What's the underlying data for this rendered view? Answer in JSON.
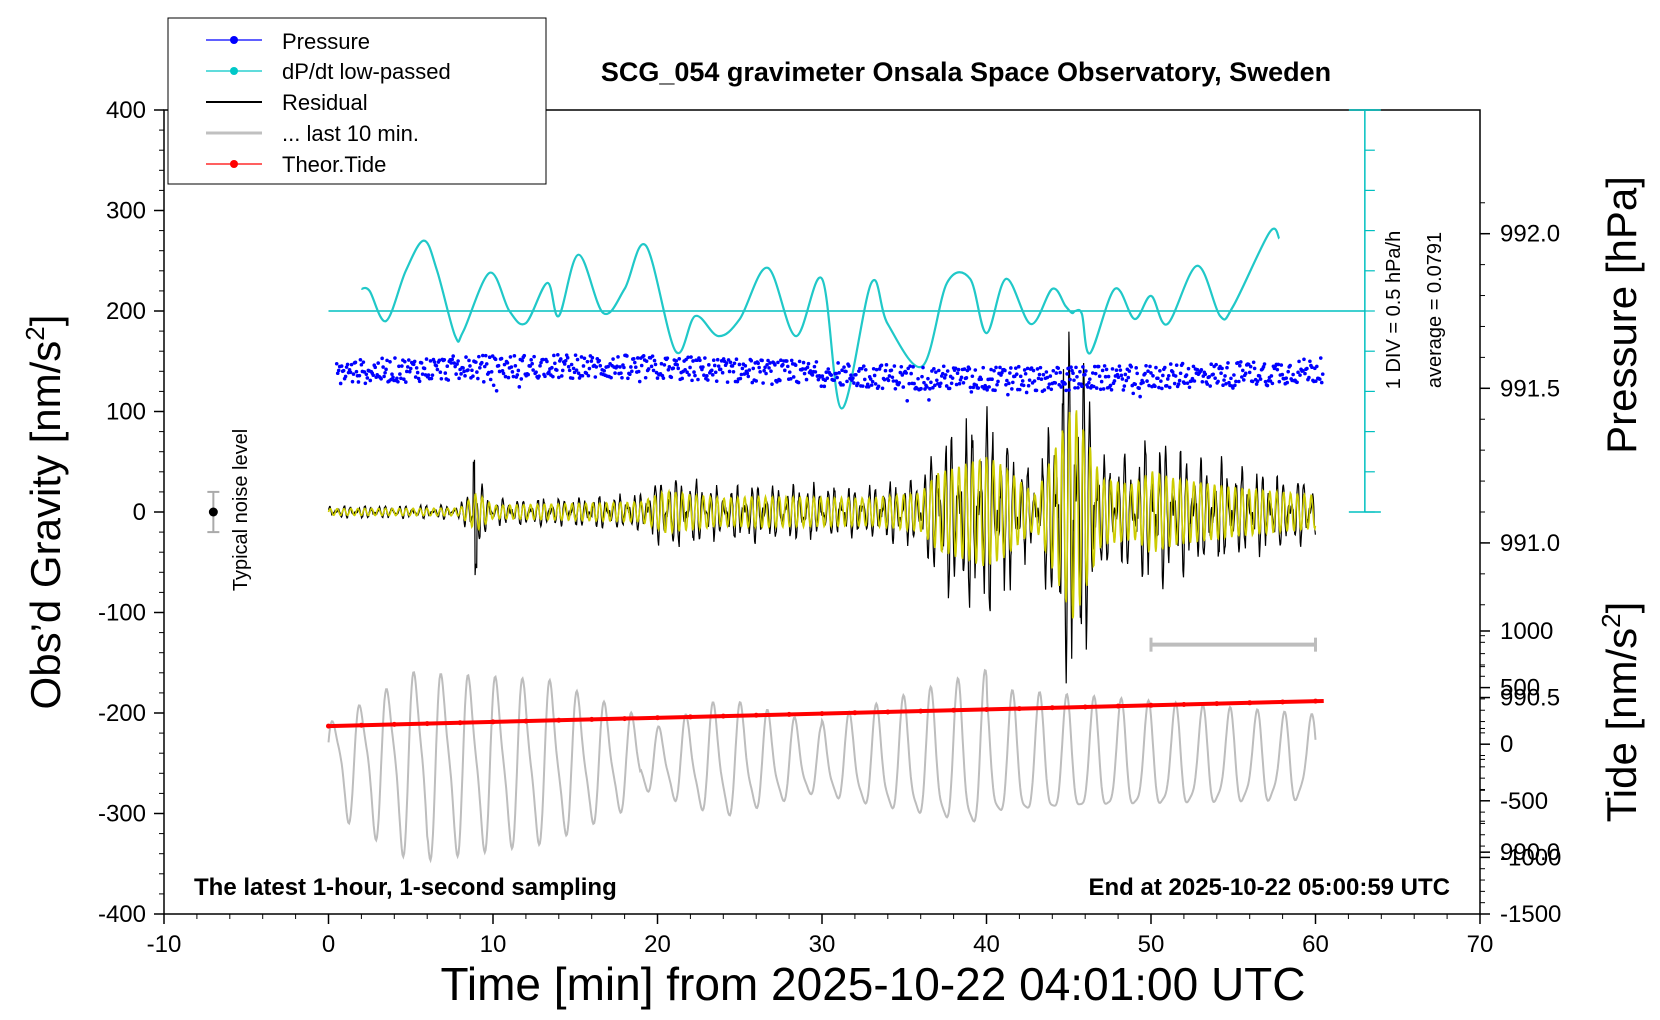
{
  "chart_data": {
    "type": "line",
    "title": "SCG_054 gravimeter Onsala Space Observatory, Sweden",
    "xlabel": "Time [min] from 2025-10-22 04:01:00 UTC",
    "ylabel_left": "Obs’d Gravity [nm/s",
    "ylabel_left_sup": "2",
    "ylabel_left_end": "]",
    "ylabel_right_top": "Pressure [hPa]",
    "ylabel_right_bottom": "Tide [nm/s",
    "ylabel_right_bottom_sup": "2",
    "ylabel_right_bottom_end": "]",
    "xlim": [
      -10,
      70
    ],
    "ylim": [
      -400,
      400
    ],
    "x_ticks": [
      "-10",
      "0",
      "10",
      "20",
      "30",
      "40",
      "50",
      "60",
      "70"
    ],
    "y_ticks": [
      "400",
      "300",
      "200",
      "100",
      "0",
      "-100",
      "-200",
      "-300",
      "-400"
    ],
    "pressure_axis": {
      "range_hPa": [
        989.8,
        992.4
      ],
      "ticks": [
        "992.0",
        "991.5",
        "991.0",
        "990.5",
        "990.0"
      ]
    },
    "tide_axis": {
      "range": [
        -1500,
        1000
      ],
      "ticks": [
        "1000",
        "500",
        "0",
        "-500",
        "-1000",
        "-1500"
      ]
    },
    "legend": {
      "position": "top-left",
      "entries": [
        {
          "label": "Pressure",
          "color": "#0000ff",
          "marker": true
        },
        {
          "label": "dP/dt low-passed",
          "color": "#00c8c8",
          "marker": true
        },
        {
          "label": "Residual",
          "color": "#000000",
          "marker": false
        },
        {
          "label": "... last 10 min.",
          "color": "#c0c0c0",
          "marker": false
        },
        {
          "label": "Theor.Tide",
          "color": "#ff0000",
          "marker": true
        }
      ]
    },
    "annotations": {
      "noise_label": "Typical noise level",
      "dpdt_scale": "1 DIV = 0.5 hPa/h",
      "dpdt_average": "average = 0.0791",
      "bottom_left": "The latest 1-hour, 1-second sampling",
      "bottom_right": "End at 2025-10-22 05:00:59 UTC"
    },
    "series": [
      {
        "name": "Pressure",
        "unit": "hPa",
        "x_range": [
          0.5,
          60.5
        ],
        "level": 991.55,
        "jitter": 0.04
      },
      {
        "name": "dP/dt low-passed",
        "unit": "nm/s2 display",
        "x": [
          2.0,
          2.5,
          3.5,
          4.7,
          5.8,
          6.6,
          7.7,
          8.2,
          9.8,
          11.0,
          12.0,
          13.3,
          14.0,
          15.2,
          16.7,
          18.0,
          19.3,
          21.1,
          22.3,
          23.7,
          25.0,
          26.7,
          28.4,
          30.0,
          31.2,
          33.0,
          34.0,
          36.1,
          37.6,
          39.0,
          40.0,
          41.2,
          42.7,
          44.0,
          44.8,
          45.2,
          45.4,
          45.8,
          46.3,
          47.8,
          49.0,
          50.0,
          51.0,
          52.8,
          54.2,
          55.0,
          57.2,
          57.8
        ],
        "y": [
          222,
          220,
          190,
          240,
          270,
          240,
          175,
          180,
          238,
          200,
          188,
          228,
          195,
          256,
          198,
          222,
          265,
          160,
          195,
          175,
          192,
          243,
          175,
          232,
          103,
          228,
          187,
          145,
          228,
          232,
          178,
          232,
          187,
          222,
          205,
          198,
          200,
          197,
          158,
          222,
          192,
          215,
          187,
          245,
          195,
          205,
          278,
          272
        ]
      },
      {
        "name": "Residual",
        "unit": "nm/s2",
        "x_range": [
          0,
          60
        ],
        "envelope_x": [
          0,
          8,
          9,
          10,
          19,
          20.5,
          24,
          26,
          33,
          36,
          37,
          40,
          41,
          43,
          44.5,
          45.3,
          47,
          49,
          50,
          51.5,
          55,
          60
        ],
        "envelope_y": [
          6,
          7,
          35,
          12,
          18,
          38,
          25,
          28,
          25,
          35,
          70,
          100,
          85,
          30,
          140,
          200,
          60,
          50,
          75,
          60,
          45,
          30
        ]
      },
      {
        "name": "... last 10 min.",
        "unit": "nm/s2",
        "x_range": [
          0,
          60
        ],
        "center": -250,
        "amplitude_max": 85
      },
      {
        "name": "Theor.Tide",
        "unit": "nm/s2",
        "x": [
          0,
          60.5
        ],
        "y": [
          -213,
          -188
        ]
      }
    ],
    "last_window_bar_x": [
      50,
      60
    ],
    "noise_marker": {
      "x": -7,
      "y": 0,
      "err": 20
    }
  }
}
